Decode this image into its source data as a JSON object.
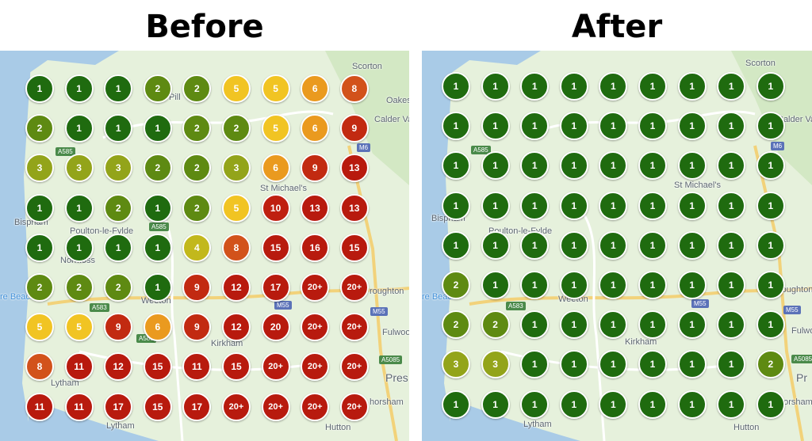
{
  "headings": {
    "before": "Before",
    "after": "After"
  },
  "colors": {
    "1": "#1f6b0f",
    "2": "#5e8a12",
    "3": "#93a41a",
    "4": "#c2b81c",
    "5": "#f1c423",
    "6": "#ea9a1f",
    "8": "#d2521b",
    "9": "#c22a11",
    "10": "#bf1f10",
    "high": "#b81a0e",
    "map_bg": "#e6f1dc"
  },
  "map_labels": {
    "scorton": "Scorton",
    "oakes": "Oakes",
    "calder_vale": "Calder Va",
    "calder_vale_after": "Calder Vale",
    "bispham": "Bispham",
    "poulton": "Poulton-le-Fylde",
    "normoss": "Normoss",
    "st_michaels": "St Michael's",
    "st_michaels_after": "St Michael's",
    "weeton": "Weeton",
    "kirkham": "Kirkham",
    "lytham": "Lytham",
    "hutton": "Hutton",
    "broughton": "roughton",
    "fulwood": "Fulwoo",
    "fulwood_after": "Fulwo",
    "preston": "Pres",
    "preston_after": "Pr",
    "longridge": "horsham",
    "beach": "re Beach",
    "beach_after": "re Beach",
    "pill": "Pill",
    "r_m6": "M6",
    "r_m55": "M55",
    "r_m55b": "M55",
    "r_a585": "A585",
    "r_a585b": "A585",
    "r_a583": "A583",
    "r_a583b": "A583",
    "r_a5085": "A5085"
  },
  "grid_before": [
    [
      "1",
      "1",
      "1",
      "2",
      "2",
      "5",
      "5",
      "6",
      "8"
    ],
    [
      "2",
      "1",
      "1",
      "1",
      "2",
      "2",
      "5",
      "6",
      "9"
    ],
    [
      "3",
      "3",
      "3",
      "2",
      "2",
      "3",
      "6",
      "9",
      "13"
    ],
    [
      "1",
      "1",
      "2",
      "1",
      "2",
      "5",
      "10",
      "13",
      "13"
    ],
    [
      "1",
      "1",
      "1",
      "1",
      "4",
      "8",
      "15",
      "16",
      "15"
    ],
    [
      "2",
      "2",
      "2",
      "1",
      "9",
      "12",
      "17",
      "20+",
      "20+"
    ],
    [
      "5",
      "5",
      "9",
      "6",
      "9",
      "12",
      "20",
      "20+",
      "20+"
    ],
    [
      "8",
      "11",
      "12",
      "15",
      "11",
      "15",
      "20+",
      "20+",
      "20+"
    ],
    [
      "11",
      "11",
      "17",
      "15",
      "17",
      "20+",
      "20+",
      "20+",
      "20+"
    ]
  ],
  "grid_after": [
    [
      "1",
      "1",
      "1",
      "1",
      "1",
      "1",
      "1",
      "1",
      "1"
    ],
    [
      "1",
      "1",
      "1",
      "1",
      "1",
      "1",
      "1",
      "1",
      "1"
    ],
    [
      "1",
      "1",
      "1",
      "1",
      "1",
      "1",
      "1",
      "1",
      "1"
    ],
    [
      "1",
      "1",
      "1",
      "1",
      "1",
      "1",
      "1",
      "1",
      "1"
    ],
    [
      "1",
      "1",
      "1",
      "1",
      "1",
      "1",
      "1",
      "1",
      "1"
    ],
    [
      "2",
      "1",
      "1",
      "1",
      "1",
      "1",
      "1",
      "1",
      "1"
    ],
    [
      "2",
      "2",
      "1",
      "1",
      "1",
      "1",
      "1",
      "1",
      "1"
    ],
    [
      "3",
      "3",
      "1",
      "1",
      "1",
      "1",
      "1",
      "1",
      "2"
    ],
    [
      "1",
      "1",
      "1",
      "1",
      "1",
      "1",
      "1",
      "1",
      "1"
    ]
  ]
}
